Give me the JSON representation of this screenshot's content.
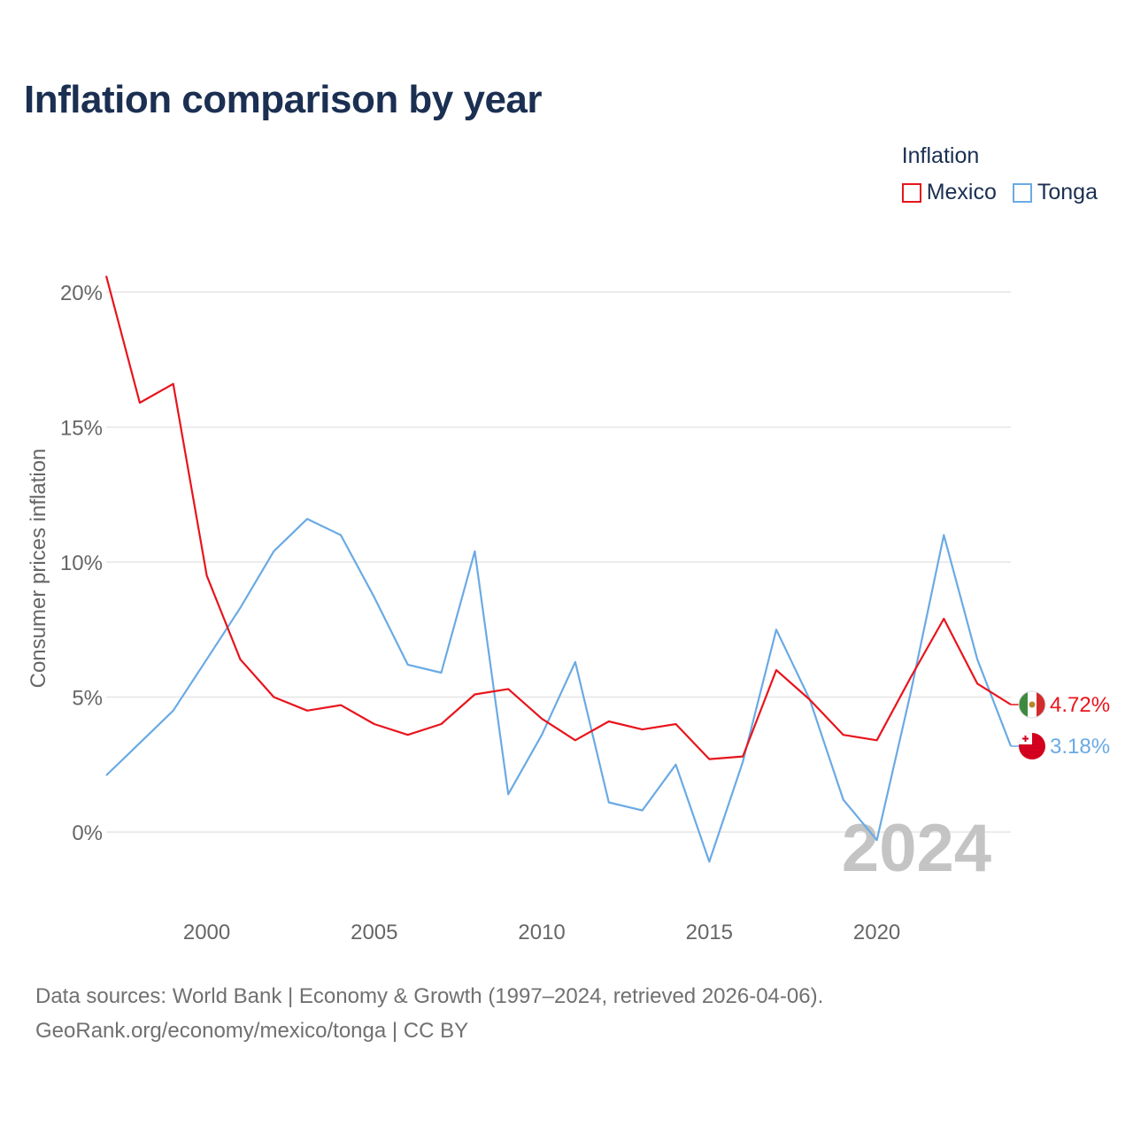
{
  "title": "Inflation comparison by year",
  "legend": {
    "title": "Inflation",
    "items": [
      {
        "label": "Mexico",
        "color": "#e8141c"
      },
      {
        "label": "Tonga",
        "color": "#6aaae4"
      }
    ]
  },
  "source": {
    "line1": "Data sources: World Bank | Economy & Growth (1997–2024, retrieved 2026-04-06).",
    "line2": "GeoRank.org/economy/mexico/tonga | CC BY"
  },
  "chart_data": {
    "type": "line",
    "title": "Inflation comparison by year",
    "xlabel": "",
    "ylabel": "Consumer prices inflation",
    "xlim": [
      1997,
      2024
    ],
    "ylim": [
      -2,
      20.6
    ],
    "x_ticks": [
      2000,
      2005,
      2010,
      2015,
      2020
    ],
    "x_tick_labels": [
      "2000",
      "2005",
      "2010",
      "2015",
      "2020"
    ],
    "y_ticks": [
      0,
      5,
      10,
      15,
      20
    ],
    "y_tick_labels": [
      "0%",
      "5%",
      "10%",
      "15%",
      "20%"
    ],
    "grid": "horizontal",
    "watermark_year": "2024",
    "x": [
      1997,
      1998,
      1999,
      2000,
      2001,
      2002,
      2003,
      2004,
      2005,
      2006,
      2007,
      2008,
      2009,
      2010,
      2011,
      2012,
      2013,
      2014,
      2015,
      2016,
      2017,
      2018,
      2019,
      2020,
      2021,
      2022,
      2023,
      2024
    ],
    "series": [
      {
        "name": "Mexico",
        "color": "#e8141c",
        "end_label": "4.72%",
        "values": [
          20.6,
          15.9,
          16.6,
          9.5,
          6.4,
          5.0,
          4.5,
          4.7,
          4.0,
          3.6,
          4.0,
          5.1,
          5.3,
          4.2,
          3.4,
          4.1,
          3.8,
          4.0,
          2.7,
          2.8,
          6.0,
          4.9,
          3.6,
          3.4,
          5.7,
          7.9,
          5.5,
          4.72
        ]
      },
      {
        "name": "Tonga",
        "color": "#6aaae4",
        "end_label": "3.18%",
        "values": [
          2.1,
          3.3,
          4.5,
          6.4,
          8.3,
          10.4,
          11.6,
          11.0,
          8.7,
          6.2,
          5.9,
          10.4,
          1.4,
          3.6,
          6.3,
          1.1,
          0.8,
          2.5,
          -1.1,
          2.6,
          7.5,
          4.9,
          1.2,
          -0.3,
          5.1,
          11.0,
          6.4,
          3.18
        ]
      }
    ]
  }
}
